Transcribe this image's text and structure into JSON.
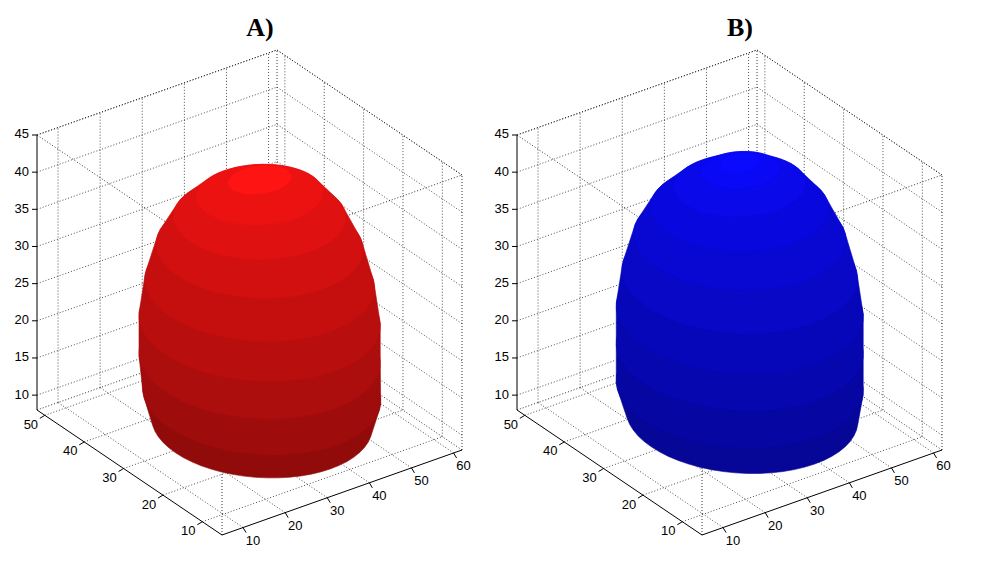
{
  "chart_data": [
    {
      "type": "isosurface",
      "title": "A)",
      "color": "#d01010",
      "xlim": [
        5,
        62
      ],
      "ylim": [
        5,
        52
      ],
      "zlim": [
        8,
        45
      ],
      "xticks": [
        10,
        20,
        30,
        40,
        50,
        60
      ],
      "yticks": [
        10,
        20,
        30,
        40,
        50
      ],
      "zticks": [
        10,
        15,
        20,
        25,
        30,
        35,
        40,
        45
      ],
      "grid": true,
      "surface": {
        "z": [
          9,
          13,
          18,
          23,
          28,
          33,
          37,
          40,
          42
        ],
        "x_range": [
          [
            15,
            56
          ],
          [
            13,
            57
          ],
          [
            12,
            57
          ],
          [
            12,
            57
          ],
          [
            13,
            56
          ],
          [
            15,
            54
          ],
          [
            18,
            51
          ],
          [
            22,
            47
          ],
          [
            28,
            41
          ]
        ],
        "y_range": [
          [
            10,
            45
          ],
          [
            8,
            46
          ],
          [
            8,
            46
          ],
          [
            8,
            46
          ],
          [
            9,
            45
          ],
          [
            11,
            43
          ],
          [
            14,
            40
          ],
          [
            18,
            36
          ],
          [
            23,
            31
          ]
        ]
      }
    },
    {
      "type": "isosurface",
      "title": "B)",
      "color": "#0808d8",
      "xlim": [
        5,
        62
      ],
      "ylim": [
        5,
        52
      ],
      "zlim": [
        8,
        45
      ],
      "xticks": [
        10,
        20,
        30,
        40,
        50,
        60
      ],
      "yticks": [
        10,
        20,
        30,
        40,
        50
      ],
      "zticks": [
        10,
        15,
        20,
        25,
        30,
        35,
        40,
        45
      ],
      "grid": true,
      "surface": {
        "z": [
          10,
          14,
          19,
          24,
          29,
          34,
          38,
          41,
          43,
          44
        ],
        "x_range": [
          [
            14,
            57
          ],
          [
            12,
            58
          ],
          [
            12,
            58
          ],
          [
            12,
            58
          ],
          [
            13,
            57
          ],
          [
            15,
            55
          ],
          [
            18,
            52
          ],
          [
            22,
            48
          ],
          [
            27,
            43
          ],
          [
            31,
            39
          ]
        ],
        "y_range": [
          [
            9,
            46
          ],
          [
            8,
            47
          ],
          [
            8,
            47
          ],
          [
            8,
            47
          ],
          [
            9,
            46
          ],
          [
            11,
            44
          ],
          [
            14,
            41
          ],
          [
            18,
            37
          ],
          [
            22,
            33
          ],
          [
            25,
            30
          ]
        ]
      }
    }
  ]
}
